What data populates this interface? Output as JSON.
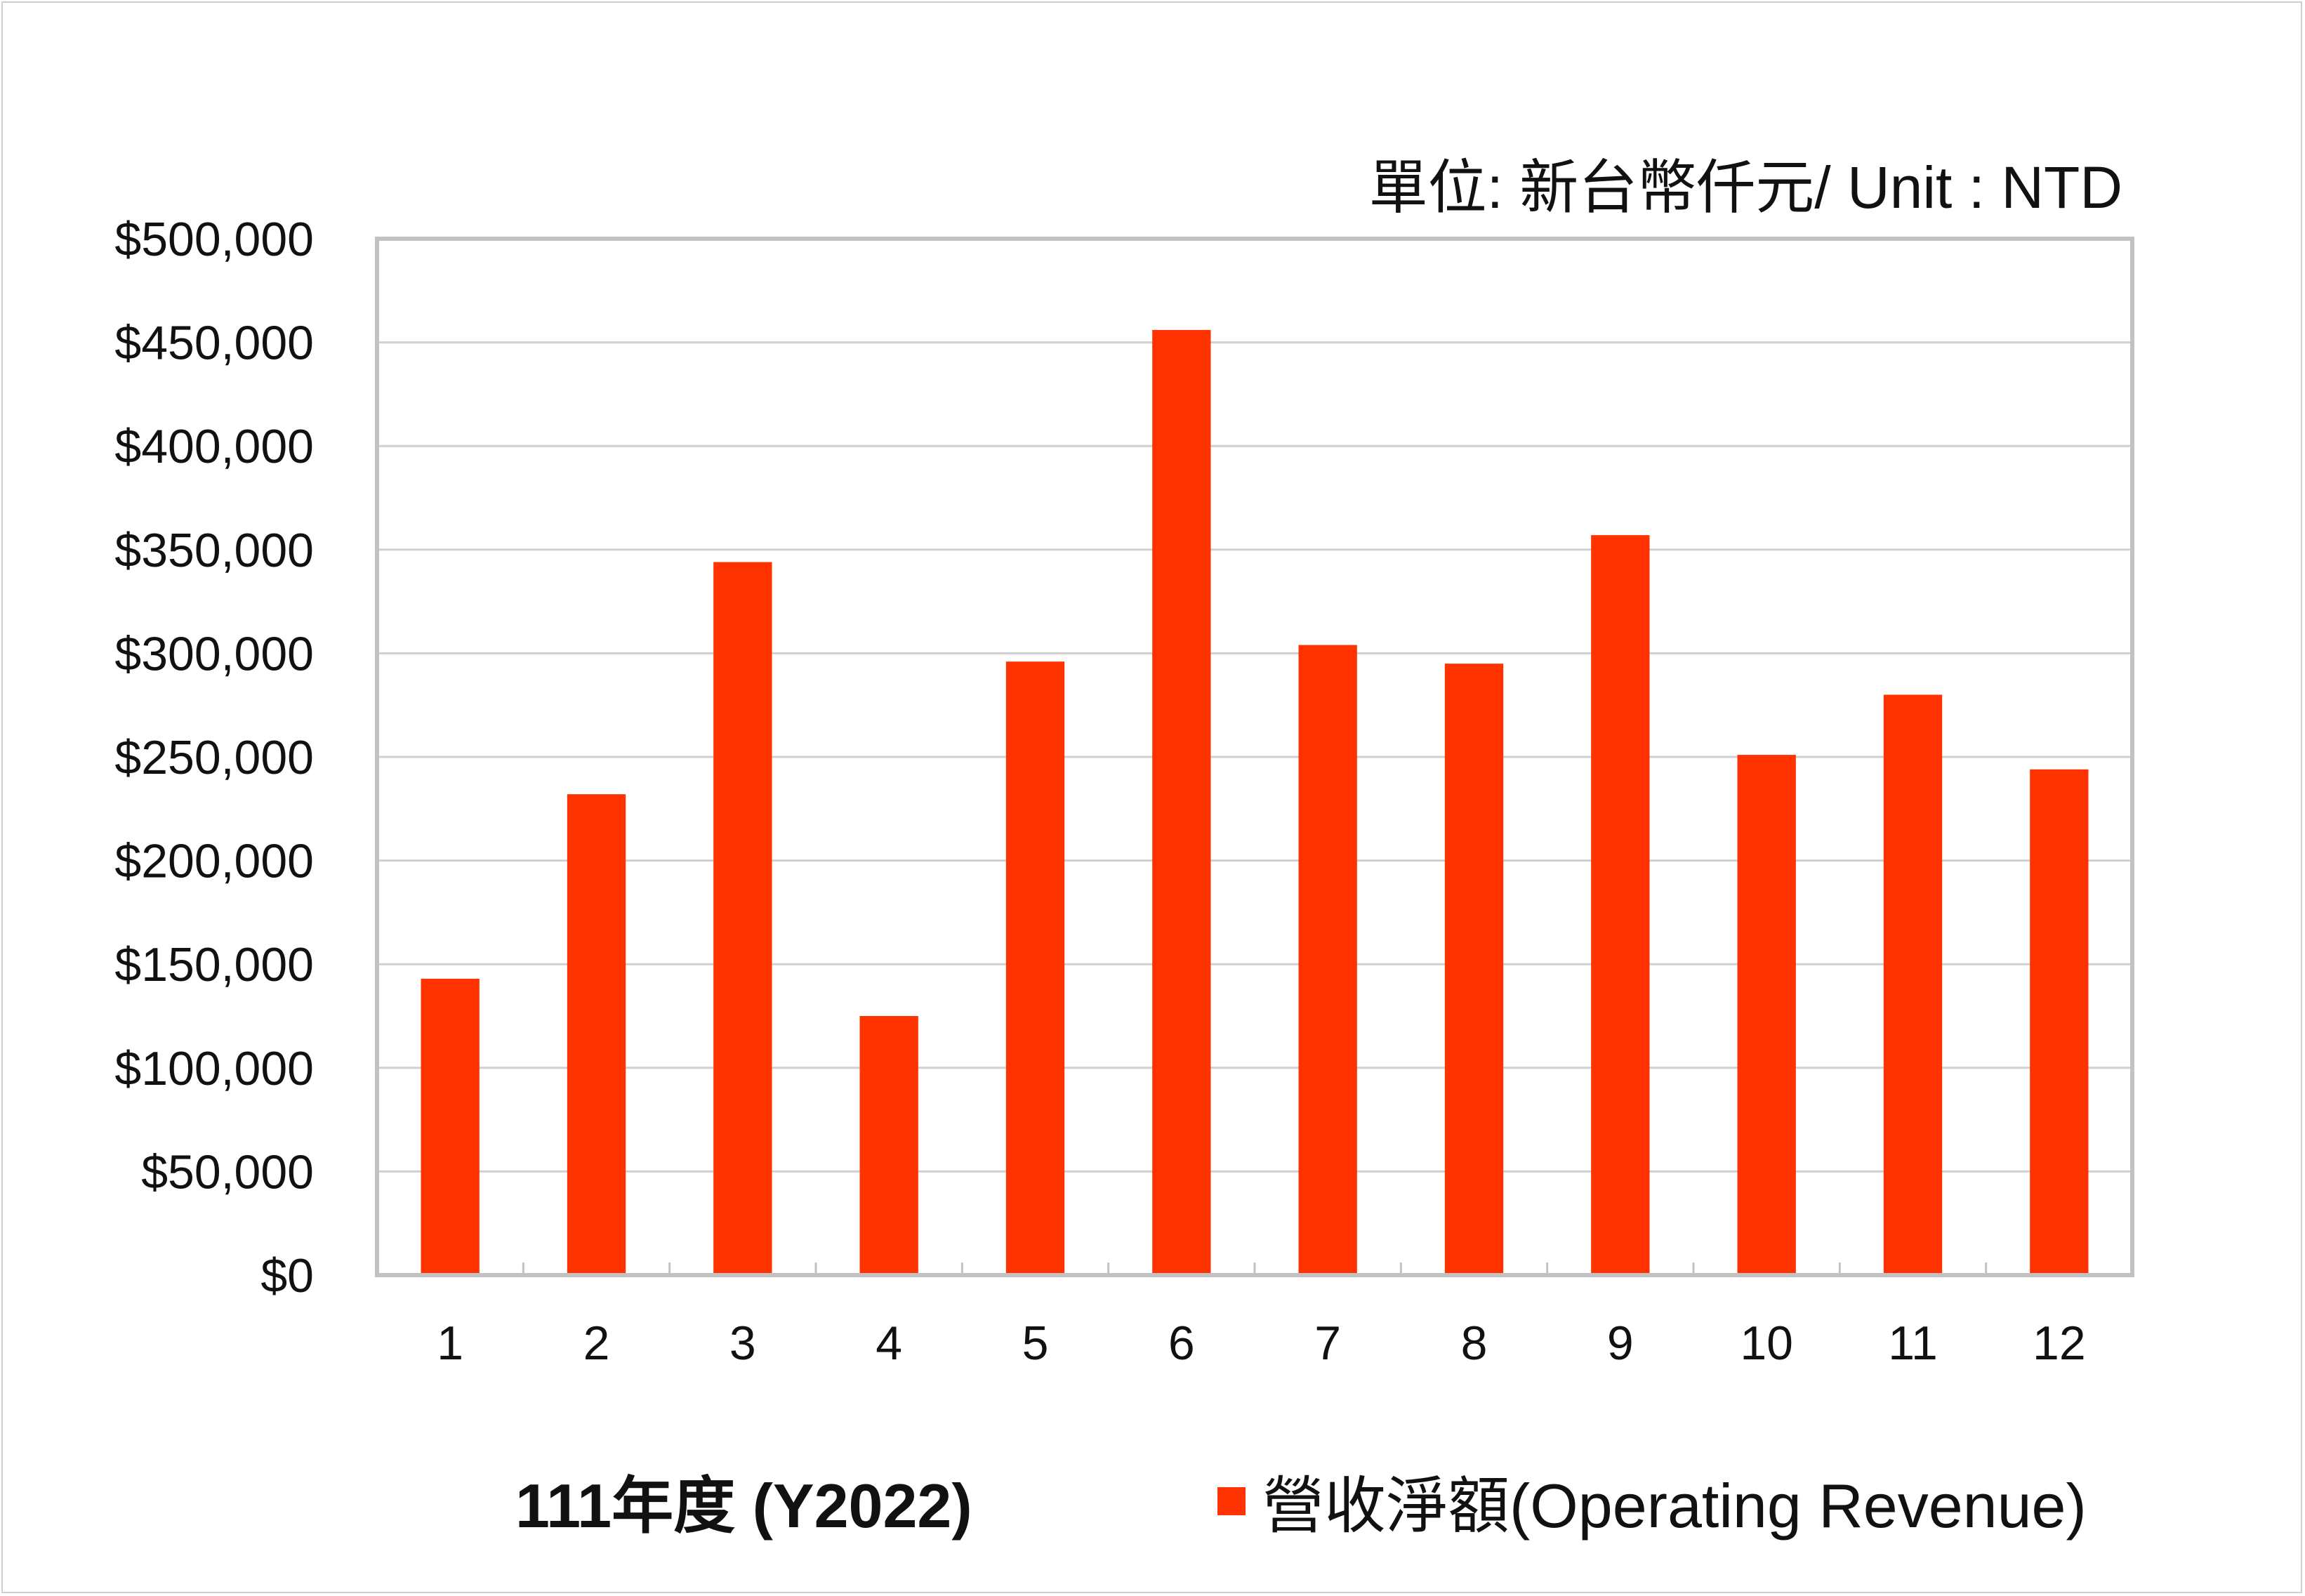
{
  "chart_data": {
    "type": "bar",
    "unit_note": "單位: 新台幣仟元/ Unit : NTD",
    "xlabel": "111年度 (Y2022)",
    "categories": [
      "1",
      "2",
      "3",
      "4",
      "5",
      "6",
      "7",
      "8",
      "9",
      "10",
      "11",
      "12"
    ],
    "series": [
      {
        "name": "營收淨額(Operating Revenue)",
        "color": "#ff3300",
        "values": [
          143000,
          232000,
          344000,
          125000,
          296000,
          456000,
          304000,
          295000,
          357000,
          251000,
          280000,
          244000
        ]
      }
    ],
    "ylim": [
      0,
      500000
    ],
    "yticks": [
      "$0",
      "$50,000",
      "$100,000",
      "$150,000",
      "$200,000",
      "$250,000",
      "$300,000",
      "$350,000",
      "$400,000",
      "$450,000",
      "$500,000"
    ],
    "grid": true,
    "legend_position": "bottom-right"
  }
}
